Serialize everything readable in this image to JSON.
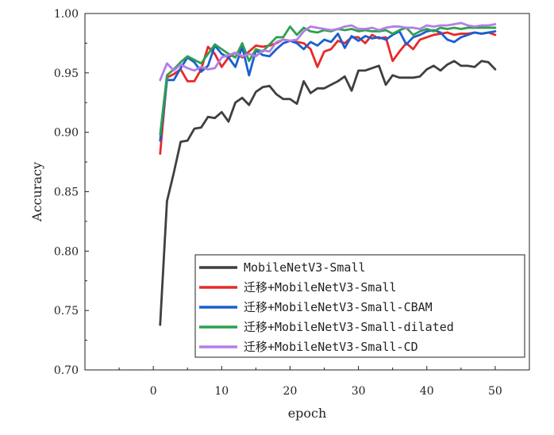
{
  "chart_data": {
    "type": "line",
    "title": "",
    "xlabel": "epoch",
    "ylabel": "Accuracy",
    "xlim": [
      -10,
      55
    ],
    "ylim": [
      0.7,
      1.0
    ],
    "xticks": [
      "0",
      "10",
      "20",
      "30",
      "40",
      "50"
    ],
    "yticks": [
      "0.70",
      "0.75",
      "0.80",
      "0.85",
      "0.90",
      "0.95",
      "1.00"
    ],
    "grid": false,
    "legend_position": "lower-right",
    "x": [
      1,
      2,
      3,
      4,
      5,
      6,
      7,
      8,
      9,
      10,
      11,
      12,
      13,
      14,
      15,
      16,
      17,
      18,
      19,
      20,
      21,
      22,
      23,
      24,
      25,
      26,
      27,
      28,
      29,
      30,
      31,
      32,
      33,
      34,
      35,
      36,
      37,
      38,
      39,
      40,
      41,
      42,
      43,
      44,
      45,
      46,
      47,
      48,
      49,
      50
    ],
    "series": [
      {
        "name": "MobileNetV3-Small",
        "color": "#3f3f3f",
        "values": [
          0.738,
          0.842,
          0.866,
          0.892,
          0.893,
          0.903,
          0.904,
          0.913,
          0.912,
          0.917,
          0.909,
          0.925,
          0.929,
          0.923,
          0.934,
          0.938,
          0.939,
          0.932,
          0.928,
          0.928,
          0.924,
          0.943,
          0.933,
          0.937,
          0.937,
          0.94,
          0.943,
          0.947,
          0.935,
          0.952,
          0.952,
          0.954,
          0.956,
          0.94,
          0.948,
          0.946,
          0.946,
          0.946,
          0.947,
          0.953,
          0.956,
          0.952,
          0.957,
          0.96,
          0.956,
          0.956,
          0.955,
          0.96,
          0.959,
          0.953
        ]
      },
      {
        "name": "迁移+MobileNetV3-Small",
        "color": "#e8292a",
        "values": [
          0.882,
          0.946,
          0.949,
          0.953,
          0.943,
          0.943,
          0.953,
          0.972,
          0.966,
          0.955,
          0.963,
          0.967,
          0.963,
          0.968,
          0.973,
          0.972,
          0.973,
          0.975,
          0.978,
          0.977,
          0.976,
          0.975,
          0.97,
          0.955,
          0.968,
          0.97,
          0.977,
          0.975,
          0.98,
          0.98,
          0.975,
          0.982,
          0.979,
          0.98,
          0.96,
          0.968,
          0.975,
          0.97,
          0.978,
          0.98,
          0.982,
          0.983,
          0.984,
          0.982,
          0.983,
          0.983,
          0.984,
          0.983,
          0.984,
          0.982
        ]
      },
      {
        "name": "迁移+MobileNetV3-Small-CBAM",
        "color": "#1a5fd0",
        "values": [
          0.893,
          0.944,
          0.944,
          0.954,
          0.963,
          0.959,
          0.951,
          0.956,
          0.973,
          0.966,
          0.963,
          0.955,
          0.972,
          0.948,
          0.969,
          0.965,
          0.964,
          0.97,
          0.975,
          0.977,
          0.975,
          0.97,
          0.976,
          0.973,
          0.978,
          0.976,
          0.983,
          0.971,
          0.981,
          0.977,
          0.981,
          0.979,
          0.98,
          0.978,
          0.982,
          0.985,
          0.974,
          0.98,
          0.982,
          0.985,
          0.986,
          0.984,
          0.978,
          0.976,
          0.98,
          0.982,
          0.984,
          0.983,
          0.984,
          0.985
        ]
      },
      {
        "name": "迁移+MobileNetV3-Small-dilated",
        "color": "#2ea04d",
        "values": [
          0.898,
          0.948,
          0.953,
          0.959,
          0.964,
          0.961,
          0.958,
          0.966,
          0.974,
          0.97,
          0.966,
          0.963,
          0.975,
          0.96,
          0.97,
          0.968,
          0.974,
          0.98,
          0.98,
          0.989,
          0.982,
          0.988,
          0.985,
          0.984,
          0.986,
          0.985,
          0.987,
          0.986,
          0.987,
          0.985,
          0.986,
          0.985,
          0.985,
          0.986,
          0.983,
          0.986,
          0.988,
          0.982,
          0.985,
          0.987,
          0.985,
          0.988,
          0.987,
          0.988,
          0.987,
          0.988,
          0.988,
          0.988,
          0.988,
          0.988
        ]
      },
      {
        "name": "迁移+MobileNetV3-Small-CD",
        "color": "#b27ee6",
        "values": [
          0.944,
          0.958,
          0.952,
          0.957,
          0.954,
          0.952,
          0.955,
          0.953,
          0.954,
          0.963,
          0.965,
          0.967,
          0.964,
          0.966,
          0.964,
          0.969,
          0.968,
          0.976,
          0.978,
          0.977,
          0.978,
          0.985,
          0.989,
          0.988,
          0.987,
          0.986,
          0.987,
          0.989,
          0.99,
          0.987,
          0.987,
          0.988,
          0.986,
          0.988,
          0.989,
          0.989,
          0.988,
          0.988,
          0.987,
          0.99,
          0.989,
          0.99,
          0.99,
          0.991,
          0.992,
          0.99,
          0.989,
          0.99,
          0.99,
          0.991
        ]
      }
    ]
  }
}
